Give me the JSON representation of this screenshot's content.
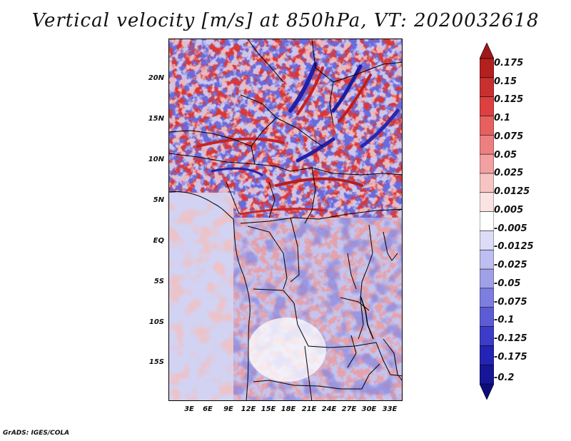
{
  "title": "Vertical velocity [m/s] at 850hPa, VT: 2020032618",
  "footer": "GrADS: IGES/COLA",
  "map": {
    "lat_labels": [
      "20N",
      "15N",
      "10N",
      "5N",
      "EQ",
      "5S",
      "10S",
      "15S"
    ],
    "lon_labels": [
      "3E",
      "6E",
      "9E",
      "12E",
      "15E",
      "18E",
      "21E",
      "24E",
      "27E",
      "30E",
      "33E"
    ],
    "lat_range": [
      -19.5,
      24.5
    ],
    "lon_range": [
      0.5,
      35
    ],
    "field": "vertical velocity",
    "level": "850hPa",
    "valid_time": "2020032618"
  },
  "colorbar": {
    "labels": [
      "0.175",
      "0.15",
      "0.125",
      "0.1",
      "0.075",
      "0.05",
      "0.025",
      "0.0125",
      "0.005",
      "-0.005",
      "-0.0125",
      "-0.025",
      "-0.05",
      "-0.075",
      "-0.1",
      "-0.125",
      "-0.175",
      "-0.2"
    ],
    "colors": [
      "#a01818",
      "#b42020",
      "#c83030",
      "#dc4040",
      "#e66060",
      "#ec8080",
      "#f2a0a0",
      "#f7c4c4",
      "#fbe3e3",
      "#ffffff",
      "#dcdcf6",
      "#bebef0",
      "#a0a0e8",
      "#7e7ee0",
      "#5c5cd6",
      "#3c3cc8",
      "#2424b4",
      "#161696",
      "#0c0c7a"
    ]
  }
}
